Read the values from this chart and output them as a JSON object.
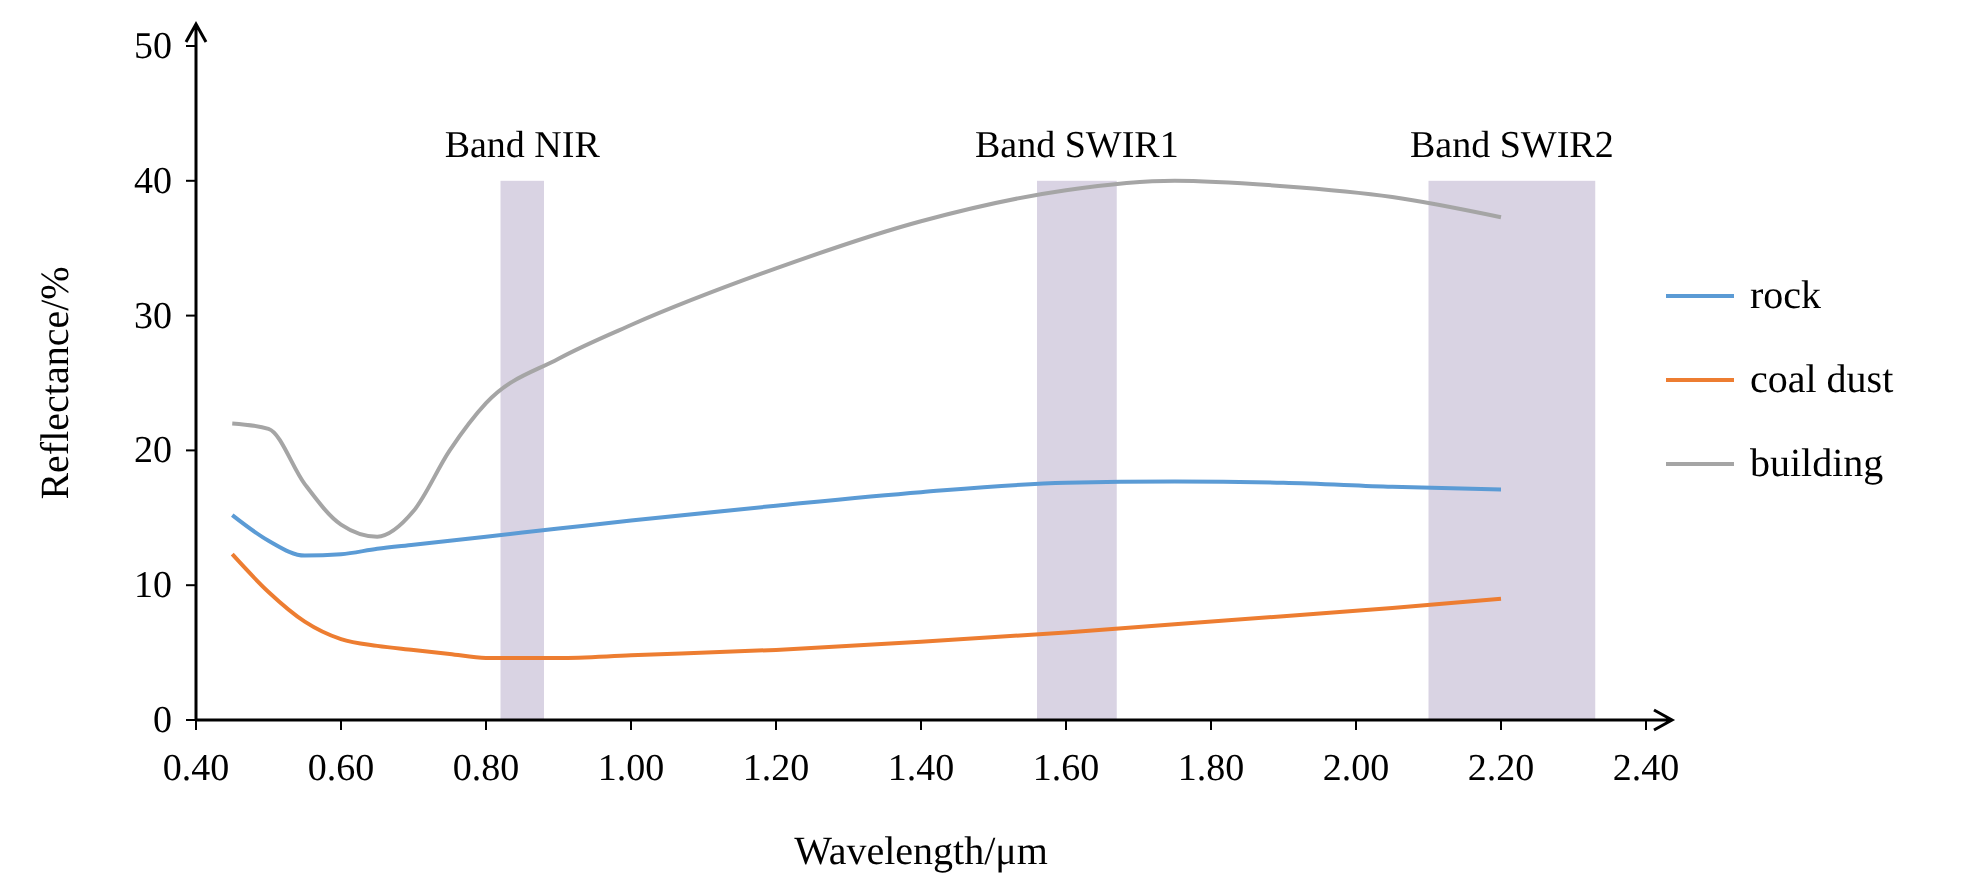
{
  "chart_data": {
    "type": "line",
    "xlabel": "Wavelength/μm",
    "ylabel": "Reflectance/%",
    "xlim": [
      0.4,
      2.4
    ],
    "xticks": [
      {
        "value": 0.4,
        "label": "0.40"
      },
      {
        "value": 0.6,
        "label": "0.60"
      },
      {
        "value": 0.8,
        "label": "0.80"
      },
      {
        "value": 1.0,
        "label": "1.00"
      },
      {
        "value": 1.2,
        "label": "1.20"
      },
      {
        "value": 1.4,
        "label": "1.40"
      },
      {
        "value": 1.6,
        "label": "1.60"
      },
      {
        "value": 1.8,
        "label": "1.80"
      },
      {
        "value": 2.0,
        "label": "2.00"
      },
      {
        "value": 2.2,
        "label": "2.20"
      },
      {
        "value": 2.4,
        "label": "2.40"
      }
    ],
    "ylim": [
      0,
      50
    ],
    "yticks": [
      0,
      10,
      20,
      30,
      40,
      50
    ],
    "grid": false,
    "legend": "right",
    "marker": "none",
    "line_style": "solid",
    "x": [
      0.45,
      0.5,
      0.55,
      0.6,
      0.65,
      0.7,
      0.75,
      0.8,
      0.9,
      1.0,
      1.2,
      1.4,
      1.6,
      1.75,
      1.9,
      2.05,
      2.2
    ],
    "series": [
      {
        "name": "rock",
        "color": "#5b9bd5",
        "values": [
          15.2,
          13.3,
          12.2,
          12.3,
          12.7,
          13.0,
          13.3,
          13.6,
          14.2,
          14.8,
          15.9,
          16.9,
          17.6,
          17.7,
          17.6,
          17.3,
          17.1
        ]
      },
      {
        "name": "coal dust",
        "color": "#ed7d31",
        "values": [
          12.3,
          9.5,
          7.3,
          6.0,
          5.5,
          5.2,
          4.9,
          4.6,
          4.6,
          4.8,
          5.2,
          5.8,
          6.5,
          7.1,
          7.7,
          8.3,
          9.0
        ]
      },
      {
        "name": "building",
        "color": "#a5a5a5",
        "values": [
          22.0,
          21.6,
          17.5,
          14.5,
          13.6,
          15.5,
          20.0,
          23.5,
          26.8,
          29.3,
          33.5,
          37.0,
          39.3,
          40.0,
          39.6,
          38.8,
          37.3
        ]
      }
    ],
    "bands": [
      {
        "axis": "x",
        "from": 0.82,
        "to": 0.88,
        "label": "Band NIR",
        "color": "#d9d3e3"
      },
      {
        "axis": "x",
        "from": 1.56,
        "to": 1.67,
        "label": "Band SWIR1",
        "color": "#d9d3e3"
      },
      {
        "axis": "x",
        "from": 2.1,
        "to": 2.33,
        "label": "Band SWIR2",
        "color": "#d9d3e3"
      }
    ]
  }
}
